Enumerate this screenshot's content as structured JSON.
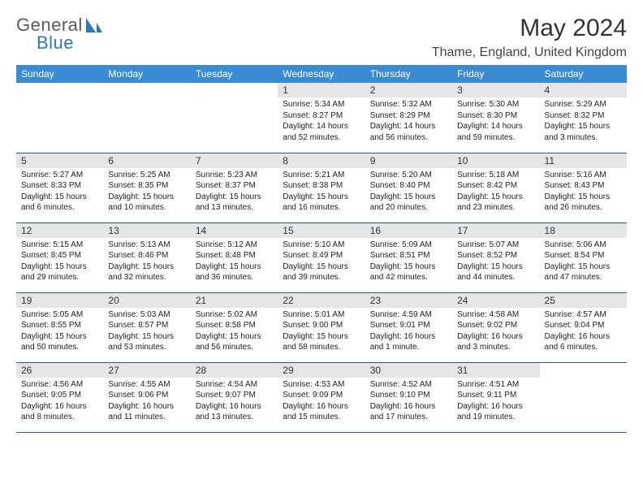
{
  "logo": {
    "text1": "General",
    "text2": "Blue"
  },
  "title": "May 2024",
  "location": "Thame, England, United Kingdom",
  "colors": {
    "header_bg": "#3b8bd4",
    "header_fg": "#ffffff",
    "daynum_bg": "#e5e5e5",
    "row_border": "#2b5a8a",
    "logo_gray": "#5a5a5a",
    "logo_blue": "#2b78c2"
  },
  "day_names": [
    "Sunday",
    "Monday",
    "Tuesday",
    "Wednesday",
    "Thursday",
    "Friday",
    "Saturday"
  ],
  "weeks": [
    [
      null,
      null,
      null,
      {
        "n": "1",
        "sr": "5:34 AM",
        "ss": "8:27 PM",
        "dl": "14 hours and 52 minutes."
      },
      {
        "n": "2",
        "sr": "5:32 AM",
        "ss": "8:29 PM",
        "dl": "14 hours and 56 minutes."
      },
      {
        "n": "3",
        "sr": "5:30 AM",
        "ss": "8:30 PM",
        "dl": "14 hours and 59 minutes."
      },
      {
        "n": "4",
        "sr": "5:29 AM",
        "ss": "8:32 PM",
        "dl": "15 hours and 3 minutes."
      }
    ],
    [
      {
        "n": "5",
        "sr": "5:27 AM",
        "ss": "8:33 PM",
        "dl": "15 hours and 6 minutes."
      },
      {
        "n": "6",
        "sr": "5:25 AM",
        "ss": "8:35 PM",
        "dl": "15 hours and 10 minutes."
      },
      {
        "n": "7",
        "sr": "5:23 AM",
        "ss": "8:37 PM",
        "dl": "15 hours and 13 minutes."
      },
      {
        "n": "8",
        "sr": "5:21 AM",
        "ss": "8:38 PM",
        "dl": "15 hours and 16 minutes."
      },
      {
        "n": "9",
        "sr": "5:20 AM",
        "ss": "8:40 PM",
        "dl": "15 hours and 20 minutes."
      },
      {
        "n": "10",
        "sr": "5:18 AM",
        "ss": "8:42 PM",
        "dl": "15 hours and 23 minutes."
      },
      {
        "n": "11",
        "sr": "5:16 AM",
        "ss": "8:43 PM",
        "dl": "15 hours and 26 minutes."
      }
    ],
    [
      {
        "n": "12",
        "sr": "5:15 AM",
        "ss": "8:45 PM",
        "dl": "15 hours and 29 minutes."
      },
      {
        "n": "13",
        "sr": "5:13 AM",
        "ss": "8:46 PM",
        "dl": "15 hours and 32 minutes."
      },
      {
        "n": "14",
        "sr": "5:12 AM",
        "ss": "8:48 PM",
        "dl": "15 hours and 36 minutes."
      },
      {
        "n": "15",
        "sr": "5:10 AM",
        "ss": "8:49 PM",
        "dl": "15 hours and 39 minutes."
      },
      {
        "n": "16",
        "sr": "5:09 AM",
        "ss": "8:51 PM",
        "dl": "15 hours and 42 minutes."
      },
      {
        "n": "17",
        "sr": "5:07 AM",
        "ss": "8:52 PM",
        "dl": "15 hours and 44 minutes."
      },
      {
        "n": "18",
        "sr": "5:06 AM",
        "ss": "8:54 PM",
        "dl": "15 hours and 47 minutes."
      }
    ],
    [
      {
        "n": "19",
        "sr": "5:05 AM",
        "ss": "8:55 PM",
        "dl": "15 hours and 50 minutes."
      },
      {
        "n": "20",
        "sr": "5:03 AM",
        "ss": "8:57 PM",
        "dl": "15 hours and 53 minutes."
      },
      {
        "n": "21",
        "sr": "5:02 AM",
        "ss": "8:58 PM",
        "dl": "15 hours and 56 minutes."
      },
      {
        "n": "22",
        "sr": "5:01 AM",
        "ss": "9:00 PM",
        "dl": "15 hours and 58 minutes."
      },
      {
        "n": "23",
        "sr": "4:59 AM",
        "ss": "9:01 PM",
        "dl": "16 hours and 1 minute."
      },
      {
        "n": "24",
        "sr": "4:58 AM",
        "ss": "9:02 PM",
        "dl": "16 hours and 3 minutes."
      },
      {
        "n": "25",
        "sr": "4:57 AM",
        "ss": "9:04 PM",
        "dl": "16 hours and 6 minutes."
      }
    ],
    [
      {
        "n": "26",
        "sr": "4:56 AM",
        "ss": "9:05 PM",
        "dl": "16 hours and 8 minutes."
      },
      {
        "n": "27",
        "sr": "4:55 AM",
        "ss": "9:06 PM",
        "dl": "16 hours and 11 minutes."
      },
      {
        "n": "28",
        "sr": "4:54 AM",
        "ss": "9:07 PM",
        "dl": "16 hours and 13 minutes."
      },
      {
        "n": "29",
        "sr": "4:53 AM",
        "ss": "9:09 PM",
        "dl": "16 hours and 15 minutes."
      },
      {
        "n": "30",
        "sr": "4:52 AM",
        "ss": "9:10 PM",
        "dl": "16 hours and 17 minutes."
      },
      {
        "n": "31",
        "sr": "4:51 AM",
        "ss": "9:11 PM",
        "dl": "16 hours and 19 minutes."
      },
      null
    ]
  ],
  "labels": {
    "sunrise": "Sunrise:",
    "sunset": "Sunset:",
    "daylight": "Daylight:"
  }
}
